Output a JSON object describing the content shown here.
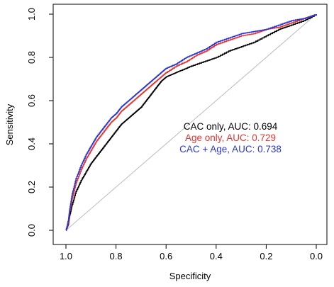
{
  "chart_data": {
    "type": "line",
    "xlabel": "Specificity",
    "ylabel": "Sensitivity",
    "xlim": [
      1.0,
      0.0
    ],
    "ylim": [
      0.0,
      1.0
    ],
    "x_reversed": true,
    "x_ticks": [
      "1.0",
      "0.8",
      "0.6",
      "0.4",
      "0.2",
      "0.0"
    ],
    "x_tick_values": [
      1.0,
      0.8,
      0.6,
      0.4,
      0.2,
      0.0
    ],
    "y_ticks": [
      "0.0",
      "0.2",
      "0.4",
      "0.6",
      "0.8",
      "1.0"
    ],
    "y_tick_values": [
      0.0,
      0.2,
      0.4,
      0.6,
      0.8,
      1.0
    ],
    "grid": false,
    "legend_position": "center-right",
    "reference_line": {
      "from": [
        1.0,
        0.0
      ],
      "to": [
        0.0,
        1.0
      ],
      "color": "#bbbbbb"
    },
    "series": [
      {
        "name": "CAC only, AUC: 0.694",
        "color": "#000000",
        "specificity": [
          1.0,
          0.99,
          0.985,
          0.975,
          0.96,
          0.94,
          0.92,
          0.9,
          0.88,
          0.86,
          0.84,
          0.82,
          0.8,
          0.78,
          0.76,
          0.74,
          0.72,
          0.7,
          0.68,
          0.66,
          0.64,
          0.62,
          0.6,
          0.58,
          0.56,
          0.54,
          0.5,
          0.45,
          0.4,
          0.35,
          0.3,
          0.25,
          0.2,
          0.15,
          0.1,
          0.05,
          0.0
        ],
        "sensitivity": [
          0.0,
          0.03,
          0.07,
          0.12,
          0.18,
          0.23,
          0.27,
          0.31,
          0.34,
          0.37,
          0.4,
          0.43,
          0.46,
          0.49,
          0.51,
          0.53,
          0.55,
          0.57,
          0.6,
          0.63,
          0.66,
          0.69,
          0.71,
          0.72,
          0.73,
          0.74,
          0.76,
          0.78,
          0.8,
          0.83,
          0.85,
          0.87,
          0.9,
          0.93,
          0.95,
          0.97,
          1.0
        ]
      },
      {
        "name": "Age only, AUC: 0.729",
        "color": "#e8342e",
        "specificity": [
          1.0,
          0.99,
          0.985,
          0.975,
          0.96,
          0.94,
          0.92,
          0.9,
          0.88,
          0.86,
          0.84,
          0.82,
          0.8,
          0.78,
          0.76,
          0.74,
          0.72,
          0.7,
          0.68,
          0.66,
          0.64,
          0.62,
          0.6,
          0.56,
          0.52,
          0.48,
          0.44,
          0.4,
          0.35,
          0.3,
          0.25,
          0.2,
          0.15,
          0.1,
          0.05,
          0.0
        ],
        "sensitivity": [
          0.0,
          0.04,
          0.09,
          0.15,
          0.22,
          0.28,
          0.33,
          0.37,
          0.41,
          0.44,
          0.47,
          0.5,
          0.52,
          0.55,
          0.57,
          0.59,
          0.61,
          0.63,
          0.65,
          0.67,
          0.69,
          0.71,
          0.73,
          0.76,
          0.78,
          0.81,
          0.83,
          0.86,
          0.88,
          0.9,
          0.91,
          0.93,
          0.94,
          0.96,
          0.98,
          1.0
        ]
      },
      {
        "name": "CAC + Age, AUC: 0.738",
        "color": "#2b35d6",
        "specificity": [
          1.0,
          0.99,
          0.985,
          0.975,
          0.96,
          0.94,
          0.92,
          0.9,
          0.88,
          0.86,
          0.84,
          0.82,
          0.8,
          0.78,
          0.76,
          0.74,
          0.72,
          0.7,
          0.68,
          0.66,
          0.64,
          0.62,
          0.6,
          0.56,
          0.52,
          0.48,
          0.44,
          0.4,
          0.35,
          0.3,
          0.25,
          0.2,
          0.15,
          0.1,
          0.05,
          0.0
        ],
        "sensitivity": [
          0.0,
          0.05,
          0.1,
          0.17,
          0.24,
          0.3,
          0.35,
          0.39,
          0.43,
          0.46,
          0.49,
          0.52,
          0.54,
          0.57,
          0.59,
          0.61,
          0.63,
          0.65,
          0.67,
          0.69,
          0.71,
          0.73,
          0.75,
          0.77,
          0.8,
          0.82,
          0.84,
          0.87,
          0.89,
          0.91,
          0.92,
          0.93,
          0.95,
          0.97,
          0.98,
          1.0
        ]
      }
    ]
  }
}
